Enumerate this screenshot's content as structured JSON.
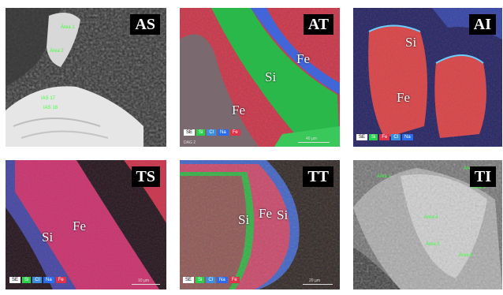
{
  "panels": {
    "as": {
      "tag": "AS",
      "spots": [
        "Área 1",
        "Área 2",
        "IAS 17",
        "IAS 18"
      ]
    },
    "at": {
      "tag": "AT",
      "labels": [
        "Fe",
        "Si",
        "Fe"
      ],
      "legend": [
        "SE",
        "Si",
        "Cl",
        "Na",
        "Fe"
      ],
      "scale": "40 µm",
      "corner": "DAG 2"
    },
    "ai": {
      "tag": "AI",
      "labels": [
        "Si",
        "Fe"
      ],
      "legend": [
        "SE",
        "Si",
        "Fe",
        "Cl",
        "Na"
      ]
    },
    "ts": {
      "tag": "TS",
      "labels": [
        "Si",
        "Fe"
      ],
      "legend": [
        "SE",
        "Si",
        "Cl",
        "Na",
        "Fe"
      ],
      "scale": "10 µm"
    },
    "tt": {
      "tag": "TT",
      "labels": [
        "Si",
        "Fe",
        "Si"
      ],
      "legend": [
        "SE",
        "Si",
        "Cl",
        "Na",
        "Fe"
      ],
      "scale": "20 µm"
    },
    "ti": {
      "tag": "TI",
      "spots": [
        "Área 1",
        "Área 2",
        "Área 3",
        "Área 4",
        "Área 5",
        "Área 6"
      ]
    }
  },
  "colors": {
    "si": "#2bd14a",
    "fe": "#e0324a",
    "na": "#2a6cf0",
    "cl": "#3a8fe0",
    "se": "#ffffff"
  }
}
